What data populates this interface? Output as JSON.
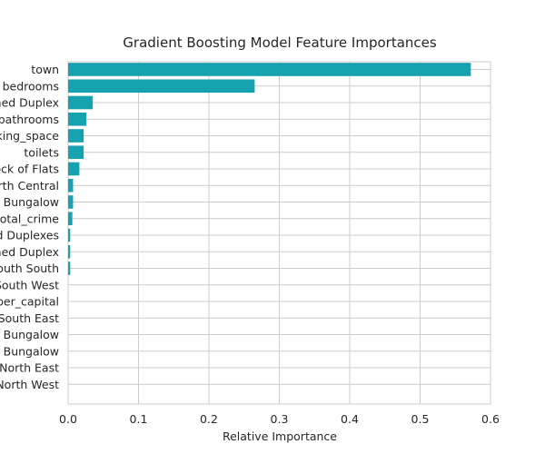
{
  "chart_data": {
    "type": "bar",
    "orientation": "horizontal",
    "title": "Gradient Boosting Model Feature Importances",
    "xlabel": "Relative Importance",
    "ylabel": "",
    "xlim": [
      0,
      0.6
    ],
    "xticks": [
      "0.0",
      "0.1",
      "0.2",
      "0.3",
      "0.4",
      "0.5",
      "0.6"
    ],
    "grid": true,
    "bar_color": "#17a2b0",
    "categories": [
      "town",
      "bedrooms",
      "ned Duplex",
      "bathrooms",
      "king_space",
      "toilets",
      "ock of Flats",
      "rth Central",
      "Bungalow",
      "total_crime",
      "d Duplexes",
      "ned Duplex",
      "outh South",
      "South West",
      "per_capital",
      "South East",
      "Bungalow",
      "Bungalow",
      "North East",
      "North West"
    ],
    "values": [
      0.572,
      0.265,
      0.035,
      0.026,
      0.022,
      0.022,
      0.016,
      0.007,
      0.007,
      0.006,
      0.003,
      0.003,
      0.003,
      0,
      0,
      0,
      0,
      0,
      0,
      0
    ]
  }
}
